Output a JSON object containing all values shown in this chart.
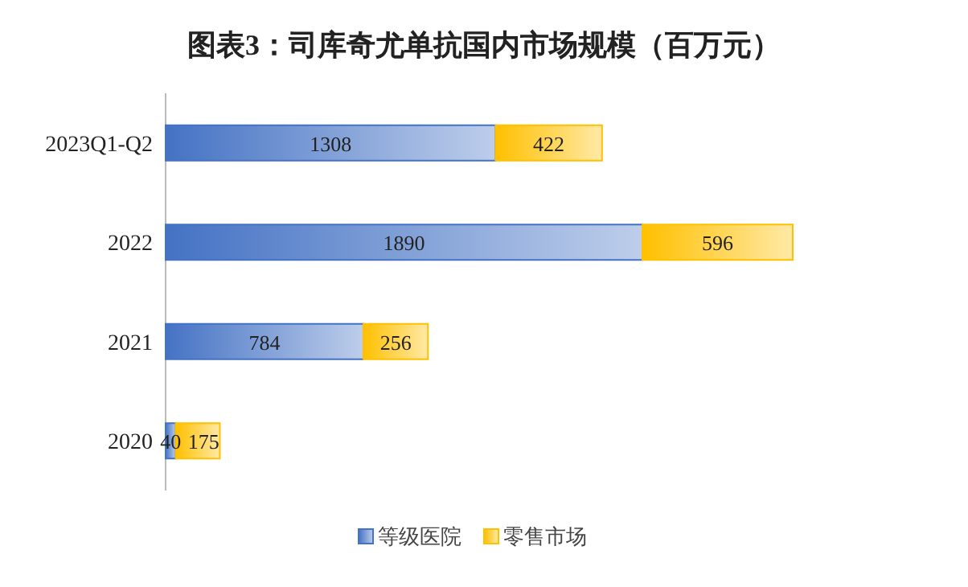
{
  "chart_data": {
    "type": "bar",
    "orientation": "horizontal",
    "stacked": true,
    "title": "图表3：司库奇尤单抗国内市场规模（百万元）",
    "categories": [
      "2023Q1-Q2",
      "2022",
      "2021",
      "2020"
    ],
    "series": [
      {
        "name": "等级医院",
        "color": "#4472c4",
        "values": [
          1308,
          1890,
          784,
          40
        ]
      },
      {
        "name": "零售市场",
        "color": "#ffc000",
        "values": [
          422,
          596,
          256,
          175
        ]
      }
    ],
    "data_labels": true,
    "legend": "bottom",
    "grid": false
  }
}
